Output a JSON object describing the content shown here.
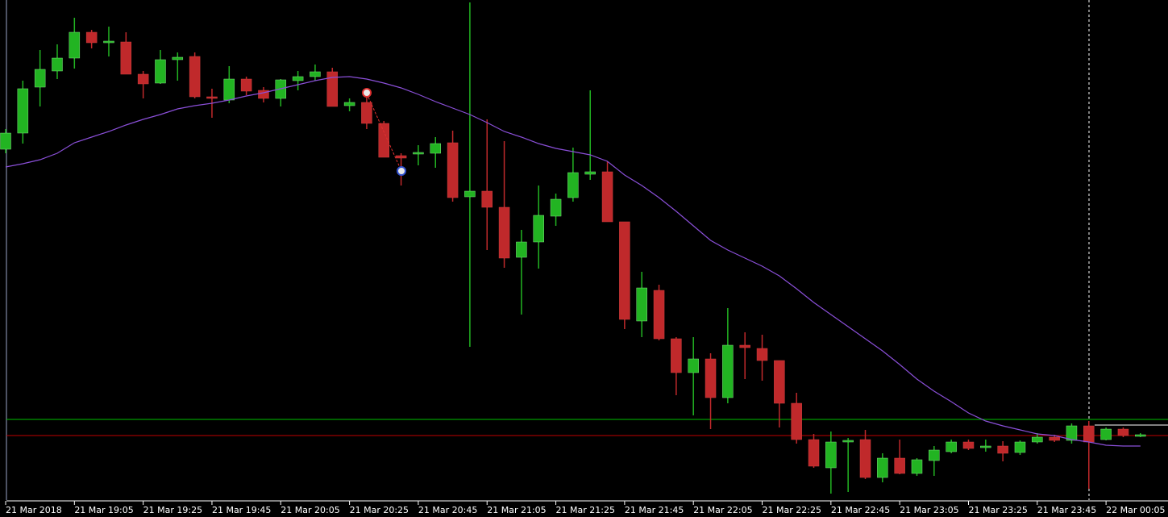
{
  "chart_data": {
    "type": "candlestick",
    "categories": [
      "21 Mar 2018",
      null,
      null,
      null,
      "21 Mar 19:05",
      null,
      null,
      null,
      "21 Mar 19:25",
      null,
      null,
      null,
      "21 Mar 19:45",
      null,
      null,
      null,
      "21 Mar 20:05",
      null,
      null,
      null,
      "21 Mar 20:25",
      null,
      null,
      null,
      "21 Mar 20:45",
      null,
      null,
      null,
      "21 Mar 21:05",
      null,
      null,
      null,
      "21 Mar 21:25",
      null,
      null,
      null,
      "21 Mar 21:45",
      null,
      null,
      null,
      "21 Mar 22:05",
      null,
      null,
      null,
      "21 Mar 22:25",
      null,
      null,
      null,
      "21 Mar 22:45",
      null,
      null,
      null,
      "21 Mar 23:05",
      null,
      null,
      null,
      "21 Mar 23:25",
      null,
      null,
      null,
      "21 Mar 23:45",
      null,
      null,
      null,
      "22 Mar 00:05",
      null,
      null
    ],
    "open": [
      435,
      455,
      512,
      532,
      548,
      580,
      567,
      568,
      528,
      517,
      546,
      550,
      500,
      496,
      522,
      508,
      498,
      520,
      525,
      531,
      489,
      493,
      467,
      427,
      429,
      430,
      443,
      376,
      383,
      363,
      301,
      320,
      352,
      375,
      404,
      407,
      345,
      222,
      260,
      200,
      158,
      175,
      127,
      192,
      188,
      173,
      120,
      75,
      40,
      72,
      75,
      28,
      52,
      33,
      49,
      60,
      72,
      65,
      67,
      59,
      72,
      78,
      74,
      92,
      75,
      88,
      80
    ],
    "high": [
      460,
      520,
      558,
      565,
      598,
      583,
      587,
      580,
      532,
      558,
      555,
      555,
      510,
      538,
      525,
      512,
      522,
      532,
      540,
      536,
      498,
      502,
      470,
      430,
      440,
      450,
      458,
      617,
      472,
      445,
      335,
      390,
      380,
      437,
      508,
      420,
      345,
      283,
      267,
      202,
      202,
      182,
      238,
      208,
      205,
      173,
      133,
      82,
      85,
      77,
      87,
      58,
      75,
      52,
      67,
      75,
      75,
      75,
      73,
      74,
      83,
      81,
      95,
      98,
      90,
      90,
      83
    ],
    "low": [
      430,
      442,
      488,
      522,
      535,
      560,
      550,
      528,
      498,
      516,
      520,
      498,
      474,
      492,
      502,
      493,
      488,
      508,
      520,
      488,
      482,
      460,
      425,
      390,
      415,
      412,
      370,
      190,
      310,
      288,
      230,
      287,
      340,
      370,
      397,
      345,
      212,
      202,
      198,
      130,
      105,
      88,
      120,
      150,
      148,
      90,
      70,
      40,
      8,
      10,
      26,
      22,
      32,
      30,
      30,
      58,
      62,
      60,
      48,
      56,
      70,
      72,
      70,
      14,
      74,
      78,
      78
    ],
    "close": [
      455,
      510,
      534,
      548,
      580,
      567,
      569,
      528,
      516,
      546,
      549,
      500,
      498,
      522,
      507,
      498,
      521,
      525,
      531,
      488,
      493,
      467,
      425,
      424,
      431,
      442,
      375,
      383,
      363,
      300,
      320,
      353,
      373,
      406,
      407,
      345,
      224,
      263,
      200,
      158,
      175,
      127,
      192,
      189,
      173,
      120,
      75,
      42,
      72,
      74,
      28,
      52,
      33,
      50,
      62,
      72,
      64,
      67,
      58,
      72,
      78,
      74,
      92,
      72,
      88,
      80,
      81
    ],
    "up_color": "#22b422",
    "down_color": "#c0292b",
    "ma": {
      "color": "#8a4fd8",
      "values": [
        413,
        417,
        422,
        430,
        443,
        450,
        457,
        465,
        472,
        478,
        485,
        489,
        492,
        496,
        501,
        505,
        510,
        515,
        520,
        524,
        525,
        522,
        517,
        511,
        503,
        494,
        486,
        478,
        468,
        457,
        450,
        442,
        436,
        432,
        428,
        420,
        403,
        390,
        375,
        358,
        340,
        322,
        310,
        300,
        290,
        278,
        262,
        245,
        230,
        215,
        200,
        185,
        168,
        150,
        135,
        122,
        108,
        98,
        92,
        87,
        82,
        80,
        75,
        72,
        68,
        67,
        67
      ]
    },
    "levels": [
      {
        "value": 100,
        "color": "#00c000"
      },
      {
        "value": 80,
        "color": "#c00000"
      }
    ],
    "ylim": [
      0,
      620
    ]
  }
}
